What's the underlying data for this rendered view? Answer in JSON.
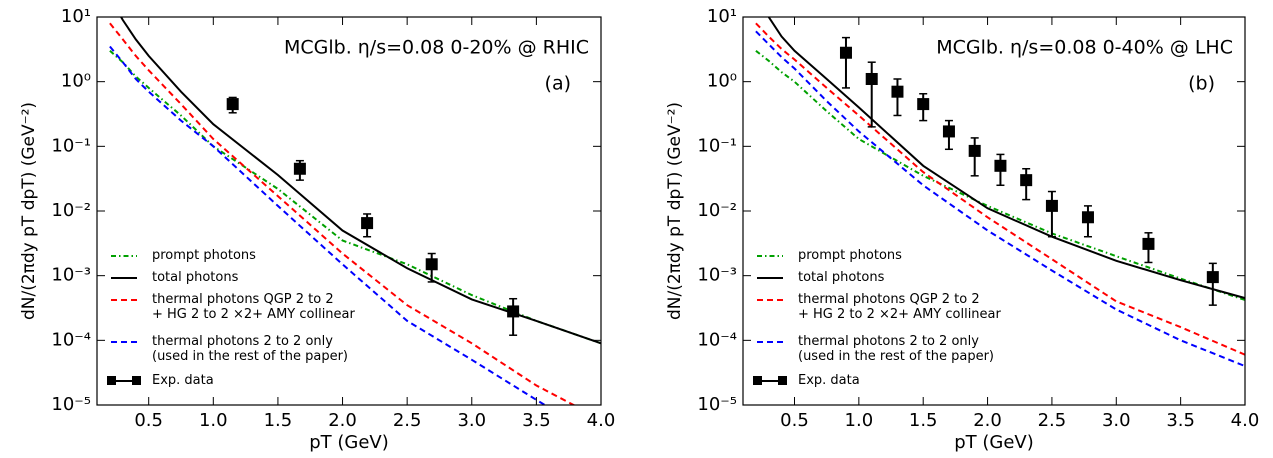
{
  "chart_data": [
    {
      "type": "line",
      "annotation": "MCGlb. η/s=0.08 0-20% @ RHIC",
      "panel_label": "(a)",
      "xlabel": "pT (GeV)",
      "ylabel": "dN/(2πdy pT dpT) (GeV⁻²)",
      "xlim": [
        0.1,
        4.0
      ],
      "ylim": [
        1e-05,
        10
      ],
      "ylog": true,
      "legend": "lower left",
      "xticks": [
        0.5,
        {
          "value": 1,
          "label": "1.0"
        },
        1.5,
        {
          "value": 2,
          "label": "2.0"
        },
        2.5,
        {
          "value": 3,
          "label": "3.0"
        },
        3.5,
        {
          "value": 4,
          "label": "4.0"
        }
      ],
      "yticks": [
        {
          "value": 1e-05,
          "label": "10⁻⁵"
        },
        {
          "value": 0.0001,
          "label": "10⁻⁴"
        },
        {
          "value": 0.001,
          "label": "10⁻³"
        },
        {
          "value": 0.01,
          "label": "10⁻²"
        },
        {
          "value": 0.1,
          "label": "10⁻¹"
        },
        {
          "value": 1,
          "label": "10⁰"
        },
        {
          "value": 10,
          "label": "10¹"
        }
      ],
      "x": [
        0.2,
        0.3,
        0.4,
        0.5,
        0.75,
        1.0,
        1.5,
        2.0,
        2.5,
        3.0,
        3.5,
        4.0
      ],
      "series": [
        {
          "name": "prompt photons",
          "color": "#00a000",
          "style": "dashdot",
          "values": [
            3,
            2,
            1.2,
            0.8,
            0.3,
            0.1,
            0.022,
            0.0035,
            0.0015,
            0.0005,
            0.0002,
            9e-05
          ]
        },
        {
          "name": "total photons",
          "color": "#000000",
          "style": "solid",
          "values": [
            20,
            9,
            4.5,
            2.5,
            0.7,
            0.22,
            0.036,
            0.005,
            0.0013,
            0.00043,
            0.0002,
            9e-05
          ]
        },
        {
          "name": "thermal photons QGP 2 to 2\n+ HG 2 to 2 ×2+ AMY collinear",
          "color": "#ff0000",
          "style": "dashed",
          "values": [
            8,
            4.5,
            2.5,
            1.5,
            0.45,
            0.13,
            0.017,
            0.0022,
            0.00035,
            9e-05,
            2e-05,
            6e-06
          ]
        },
        {
          "name": "thermal photons 2 to 2 only\n(used in the rest of the paper)",
          "color": "#0000ff",
          "style": "dashed",
          "values": [
            3.5,
            2,
            1.1,
            0.7,
            0.25,
            0.1,
            0.012,
            0.0015,
            0.0002,
            5e-05,
            1.2e-05,
            3e-06
          ]
        },
        {
          "name": "Exp. data",
          "color": "#000000",
          "style": "markers",
          "x": [
            1.15,
            1.67,
            2.19,
            2.69,
            3.32
          ],
          "values": [
            0.45,
            0.045,
            0.0065,
            0.0015,
            0.00028
          ],
          "errors": [
            0.12,
            0.015,
            0.0025,
            0.0007,
            0.00016
          ]
        }
      ]
    },
    {
      "type": "line",
      "annotation": "MCGlb. η/s=0.08 0-40% @ LHC",
      "panel_label": "(b)",
      "xlabel": "pT (GeV)",
      "ylabel": "dN/(2πdy pT dpT) (GeV⁻²)",
      "xlim": [
        0.1,
        4.0
      ],
      "ylim": [
        1e-05,
        10
      ],
      "ylog": true,
      "legend": "lower left",
      "xticks": [
        0.5,
        {
          "value": 1,
          "label": "1.0"
        },
        1.5,
        {
          "value": 2,
          "label": "2.0"
        },
        2.5,
        {
          "value": 3,
          "label": "3.0"
        },
        3.5,
        {
          "value": 4,
          "label": "4.0"
        }
      ],
      "yticks": [
        {
          "value": 1e-05,
          "label": "10⁻⁵"
        },
        {
          "value": 0.0001,
          "label": "10⁻⁴"
        },
        {
          "value": 0.001,
          "label": "10⁻³"
        },
        {
          "value": 0.01,
          "label": "10⁻²"
        },
        {
          "value": 0.1,
          "label": "10⁻¹"
        },
        {
          "value": 1,
          "label": "10⁰"
        },
        {
          "value": 10,
          "label": "10¹"
        }
      ],
      "x": [
        0.2,
        0.3,
        0.4,
        0.5,
        0.75,
        1.0,
        1.5,
        2.0,
        2.5,
        3.0,
        3.5,
        4.0
      ],
      "series": [
        {
          "name": "prompt photons",
          "color": "#00a000",
          "style": "dashdot",
          "values": [
            3,
            2.1,
            1.4,
            1.0,
            0.35,
            0.13,
            0.035,
            0.012,
            0.0045,
            0.002,
            0.0009,
            0.00042
          ]
        },
        {
          "name": "total photons",
          "color": "#000000",
          "style": "solid",
          "values": [
            20,
            10,
            5,
            3,
            1.1,
            0.4,
            0.05,
            0.011,
            0.004,
            0.0017,
            0.00085,
            0.00045
          ]
        },
        {
          "name": "thermal photons QGP 2 to 2\n+ HG 2 to 2 ×2+ AMY collinear",
          "color": "#ff0000",
          "style": "dashed",
          "values": [
            8,
            5,
            3.2,
            2.2,
            0.8,
            0.3,
            0.04,
            0.008,
            0.0018,
            0.0004,
            0.00016,
            6e-05
          ]
        },
        {
          "name": "thermal photons 2 to 2 only\n(used in the rest of the paper)",
          "color": "#0000ff",
          "style": "dashed",
          "values": [
            6,
            3.8,
            2.4,
            1.6,
            0.5,
            0.17,
            0.025,
            0.005,
            0.0012,
            0.0003,
            0.0001,
            4e-05
          ]
        },
        {
          "name": "Exp. data",
          "color": "#000000",
          "style": "markers",
          "x": [
            0.9,
            1.1,
            1.3,
            1.5,
            1.7,
            1.9,
            2.1,
            2.3,
            2.5,
            2.78,
            3.25,
            3.75
          ],
          "values": [
            2.8,
            1.1,
            0.7,
            0.45,
            0.17,
            0.085,
            0.05,
            0.03,
            0.012,
            0.008,
            0.0031,
            0.00095
          ],
          "errors": [
            2.0,
            0.9,
            0.4,
            0.2,
            0.08,
            0.05,
            0.025,
            0.015,
            0.008,
            0.004,
            0.0015,
            0.0006
          ]
        }
      ]
    }
  ]
}
